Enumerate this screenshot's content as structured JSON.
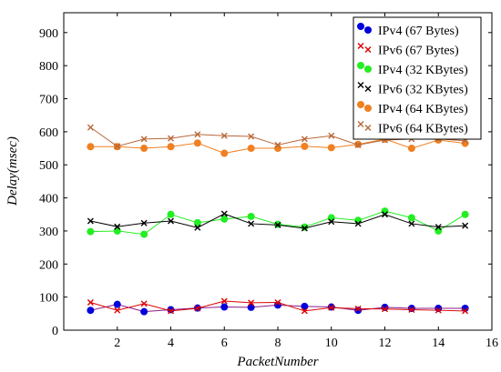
{
  "chart_data": {
    "type": "line",
    "xlabel": "PacketNumber",
    "ylabel": "Delay(msec)",
    "xlim": [
      0,
      16
    ],
    "ylim": [
      0,
      960
    ],
    "xticks": [
      2,
      4,
      6,
      8,
      10,
      12,
      14,
      16
    ],
    "yticks": [
      0,
      100,
      200,
      300,
      400,
      500,
      600,
      700,
      800,
      900
    ],
    "grid": false,
    "legend_position": "top-right",
    "x": [
      1,
      2,
      3,
      4,
      5,
      6,
      7,
      8,
      9,
      10,
      11,
      12,
      13,
      14,
      15
    ],
    "series": [
      {
        "name": "IPv4 (67 Bytes)",
        "marker": "circle",
        "color": "#0000dd",
        "line_color": "#8a1c8a",
        "values": [
          60,
          78,
          56,
          62,
          67,
          70,
          69,
          76,
          72,
          70,
          60,
          69,
          66,
          66,
          66
        ]
      },
      {
        "name": "IPv6 (67 Bytes)",
        "marker": "x",
        "color": "#dd0000",
        "line_color": "#dd0000",
        "values": [
          84,
          60,
          80,
          58,
          66,
          88,
          83,
          84,
          58,
          68,
          65,
          64,
          62,
          60,
          58
        ]
      },
      {
        "name": "IPv4 (32 KBytes)",
        "marker": "circle",
        "color": "#22ee22",
        "line_color": "#22ee22",
        "values": [
          298,
          300,
          290,
          350,
          325,
          336,
          344,
          320,
          312,
          340,
          332,
          360,
          340,
          300,
          350
        ]
      },
      {
        "name": "IPv6 (32 KBytes)",
        "marker": "x",
        "color": "#000000",
        "line_color": "#000000",
        "values": [
          330,
          313,
          324,
          330,
          310,
          352,
          322,
          318,
          308,
          328,
          322,
          350,
          322,
          312,
          316
        ]
      },
      {
        "name": "IPv4 (64 KBytes)",
        "marker": "circle",
        "color": "#f08020",
        "line_color": "#f08020",
        "values": [
          555,
          555,
          550,
          555,
          566,
          535,
          550,
          550,
          556,
          552,
          562,
          578,
          550,
          575,
          565
        ]
      },
      {
        "name": "IPv6 (64 KBytes)",
        "marker": "x",
        "color": "#b8683a",
        "line_color": "#b8683a",
        "values": [
          613,
          556,
          578,
          580,
          592,
          588,
          586,
          560,
          578,
          588,
          560,
          575,
          578,
          578,
          573
        ]
      }
    ]
  }
}
